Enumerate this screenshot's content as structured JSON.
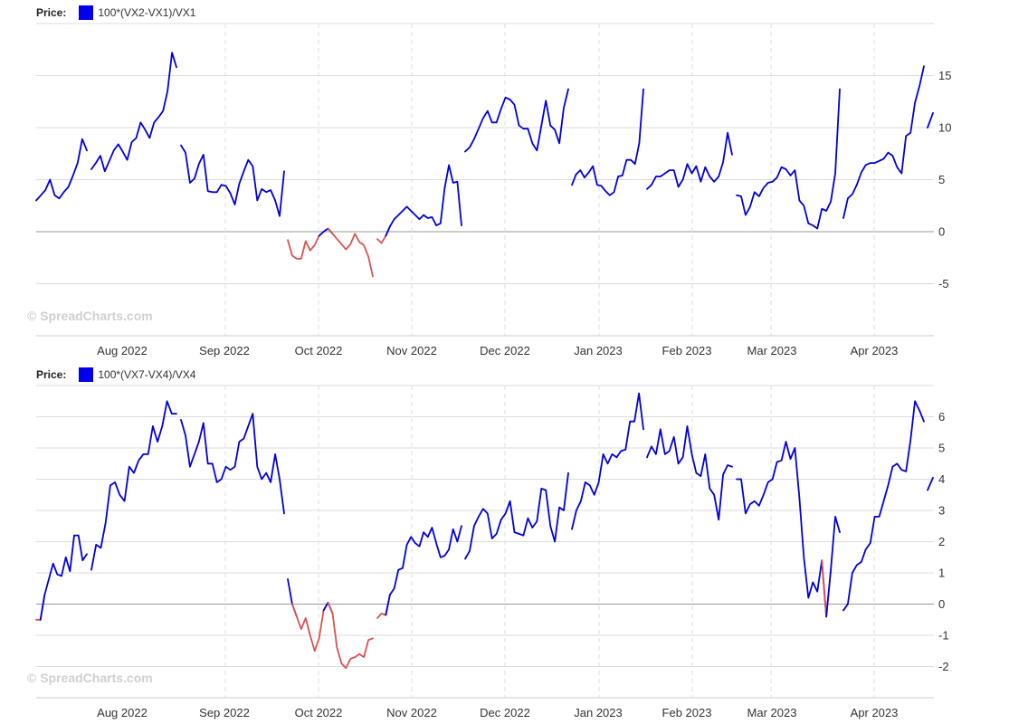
{
  "watermark": "© SpreadCharts.com",
  "colors": {
    "positive": "#0000dd",
    "negative": "#d9534f",
    "swatch": "#0000ee",
    "grid": "#dddddd",
    "zero": "#999999"
  },
  "chart_data": [
    {
      "type": "line",
      "price_label": "Price:",
      "legend_name": "100*(VX2-VX1)/VX1",
      "ylim": [
        -10,
        20
      ],
      "y_ticks": [
        -5,
        0,
        5,
        10,
        15
      ],
      "x_ticks": [
        "Aug 2022",
        "Sep 2022",
        "Oct 2022",
        "Nov 2022",
        "Dec 2022",
        "Jan 2023",
        "Feb 2023",
        "Mar 2023",
        "Apr 2023"
      ],
      "segments": [
        [
          3.0,
          3.5,
          4.0,
          5.0,
          3.5,
          3.2,
          3.8,
          4.3,
          5.4,
          6.6,
          8.9,
          7.8
        ],
        [
          6.0,
          6.6,
          7.3,
          5.8,
          6.8,
          7.8,
          8.4,
          7.7,
          6.9,
          8.6,
          9.0,
          10.5,
          9.8,
          9.0,
          10.5,
          11.0,
          11.6,
          13.5,
          17.2,
          15.8
        ],
        [
          8.3,
          7.6,
          4.7,
          5.1,
          6.5,
          7.4,
          3.9,
          3.8,
          3.8,
          4.5,
          4.4,
          3.7,
          2.6,
          4.6,
          5.8,
          6.9,
          6.3,
          3.0,
          4.1,
          3.8,
          4.0,
          3.0,
          1.5,
          5.8
        ],
        [
          -0.8,
          -2.3,
          -2.6,
          -2.6,
          -0.9,
          -1.8,
          -1.3,
          -0.4,
          0.0,
          0.3,
          -0.2,
          -0.7,
          -1.2,
          -1.7,
          -1.2,
          -0.2,
          -1.0,
          -1.3,
          -2.4,
          -4.3
        ],
        [
          -0.7,
          -1.1,
          -0.4,
          0.5,
          1.2,
          1.6,
          2.0,
          2.4,
          2.0,
          1.6,
          1.2,
          1.6,
          1.3,
          1.4,
          0.6,
          0.8,
          4.2,
          6.4,
          4.7,
          4.8,
          0.6
        ],
        [
          7.7,
          8.1,
          8.9,
          9.9,
          10.9,
          11.6,
          10.5,
          10.5,
          11.8,
          12.9,
          12.7,
          12.2,
          10.2,
          9.9,
          9.9,
          8.5,
          7.8,
          10.2,
          12.6,
          10.2,
          9.8,
          8.5,
          11.9,
          13.7
        ],
        [
          4.5,
          5.5,
          5.9,
          5.2,
          5.7,
          6.3,
          4.5,
          4.4,
          3.9,
          3.5,
          3.8,
          5.3,
          5.4,
          6.9,
          6.9,
          6.5,
          8.5,
          13.7
        ],
        [
          4.1,
          4.5,
          5.3,
          5.3,
          5.6,
          5.9,
          5.9,
          4.3,
          5.0,
          6.5,
          5.6,
          6.3,
          4.8,
          6.2,
          5.3,
          4.8,
          5.3,
          6.7,
          9.5,
          7.4
        ],
        [
          3.5,
          3.4,
          1.6,
          2.4,
          3.8,
          3.4,
          4.2,
          4.7,
          4.8,
          5.2,
          6.2,
          6.0,
          5.4,
          5.9,
          3.0,
          2.5,
          0.8,
          0.6,
          0.3,
          2.2,
          2.0,
          2.9,
          5.6,
          13.7
        ],
        [
          1.3,
          3.2,
          3.6,
          4.5,
          5.7,
          6.4,
          6.6,
          6.6,
          6.8,
          7.0,
          7.6,
          7.3,
          6.2,
          5.6,
          9.2,
          9.5,
          12.4,
          14.0,
          15.9
        ],
        [
          10.0,
          11.4
        ]
      ]
    },
    {
      "type": "line",
      "price_label": "Price:",
      "legend_name": "100*(VX7-VX4)/VX4",
      "ylim": [
        -3,
        7
      ],
      "y_ticks": [
        -2,
        -1,
        0,
        1,
        2,
        3,
        4,
        5,
        6
      ],
      "x_ticks": [
        "Aug 2022",
        "Sep 2022",
        "Oct 2022",
        "Nov 2022",
        "Dec 2022",
        "Jan 2023",
        "Feb 2023",
        "Mar 2023",
        "Apr 2023"
      ],
      "segments": [
        [
          -0.5,
          -0.5,
          0.3,
          0.8,
          1.3,
          0.95,
          0.9,
          1.5,
          1.05,
          2.2,
          2.2,
          1.4,
          1.6
        ],
        [
          1.1,
          1.9,
          1.8,
          2.6,
          3.8,
          3.9,
          3.5,
          3.3,
          4.4,
          4.2,
          4.6,
          4.8,
          4.8,
          5.7,
          5.2,
          5.7,
          6.5,
          6.1,
          6.1
        ],
        [
          5.9,
          5.4,
          4.4,
          4.8,
          5.2,
          5.8,
          4.5,
          4.5,
          3.9,
          4.0,
          4.4,
          4.3,
          4.4,
          5.2,
          5.3,
          5.7,
          6.1,
          4.4,
          4.0,
          4.2,
          3.9,
          4.8,
          4.0,
          2.9
        ],
        [
          0.8,
          0.0,
          -0.4,
          -0.8,
          -0.45,
          -1.0,
          -1.5,
          -1.1,
          -0.2,
          0.05,
          -0.3,
          -1.4,
          -1.9,
          -2.05,
          -1.75,
          -1.7,
          -1.6,
          -1.7,
          -1.15,
          -1.1
        ],
        [
          -0.45,
          -0.3,
          -0.35,
          0.3,
          0.5,
          1.1,
          1.15,
          1.9,
          2.15,
          1.95,
          1.85,
          2.3,
          2.15,
          2.45,
          1.95,
          1.5,
          1.55,
          1.75,
          2.4,
          2.0,
          2.5
        ],
        [
          1.45,
          1.7,
          2.5,
          2.8,
          3.05,
          2.9,
          2.1,
          2.25,
          2.7,
          2.9,
          3.3,
          2.3,
          2.25,
          2.2,
          2.75,
          2.45,
          2.65,
          3.7,
          3.65,
          2.5,
          2.0,
          3.1,
          3.0,
          4.2
        ],
        [
          2.4,
          3.0,
          3.3,
          3.9,
          3.8,
          3.5,
          3.9,
          4.8,
          4.5,
          4.8,
          4.7,
          4.9,
          4.95,
          5.85,
          5.85,
          6.75,
          5.6
        ],
        [
          4.7,
          5.05,
          4.8,
          5.6,
          4.8,
          4.9,
          5.35,
          4.5,
          4.7,
          5.7,
          4.8,
          4.2,
          4.1,
          4.8,
          3.7,
          3.5,
          2.7,
          4.15,
          4.45,
          4.4
        ],
        [
          4.0,
          4.0,
          2.9,
          3.2,
          3.3,
          3.15,
          3.5,
          3.9,
          4.0,
          4.55,
          4.6,
          5.2,
          4.65,
          5.0,
          3.4,
          1.5,
          0.2,
          0.7,
          0.4,
          1.4,
          -0.4,
          1.1,
          2.8,
          2.3
        ],
        [
          -0.2,
          0.0,
          1.0,
          1.25,
          1.35,
          1.75,
          1.95,
          2.8,
          2.8,
          3.3,
          3.8,
          4.4,
          4.5,
          4.3,
          4.25,
          5.25,
          6.5,
          6.2,
          5.85
        ],
        [
          3.65,
          4.05
        ]
      ]
    }
  ]
}
